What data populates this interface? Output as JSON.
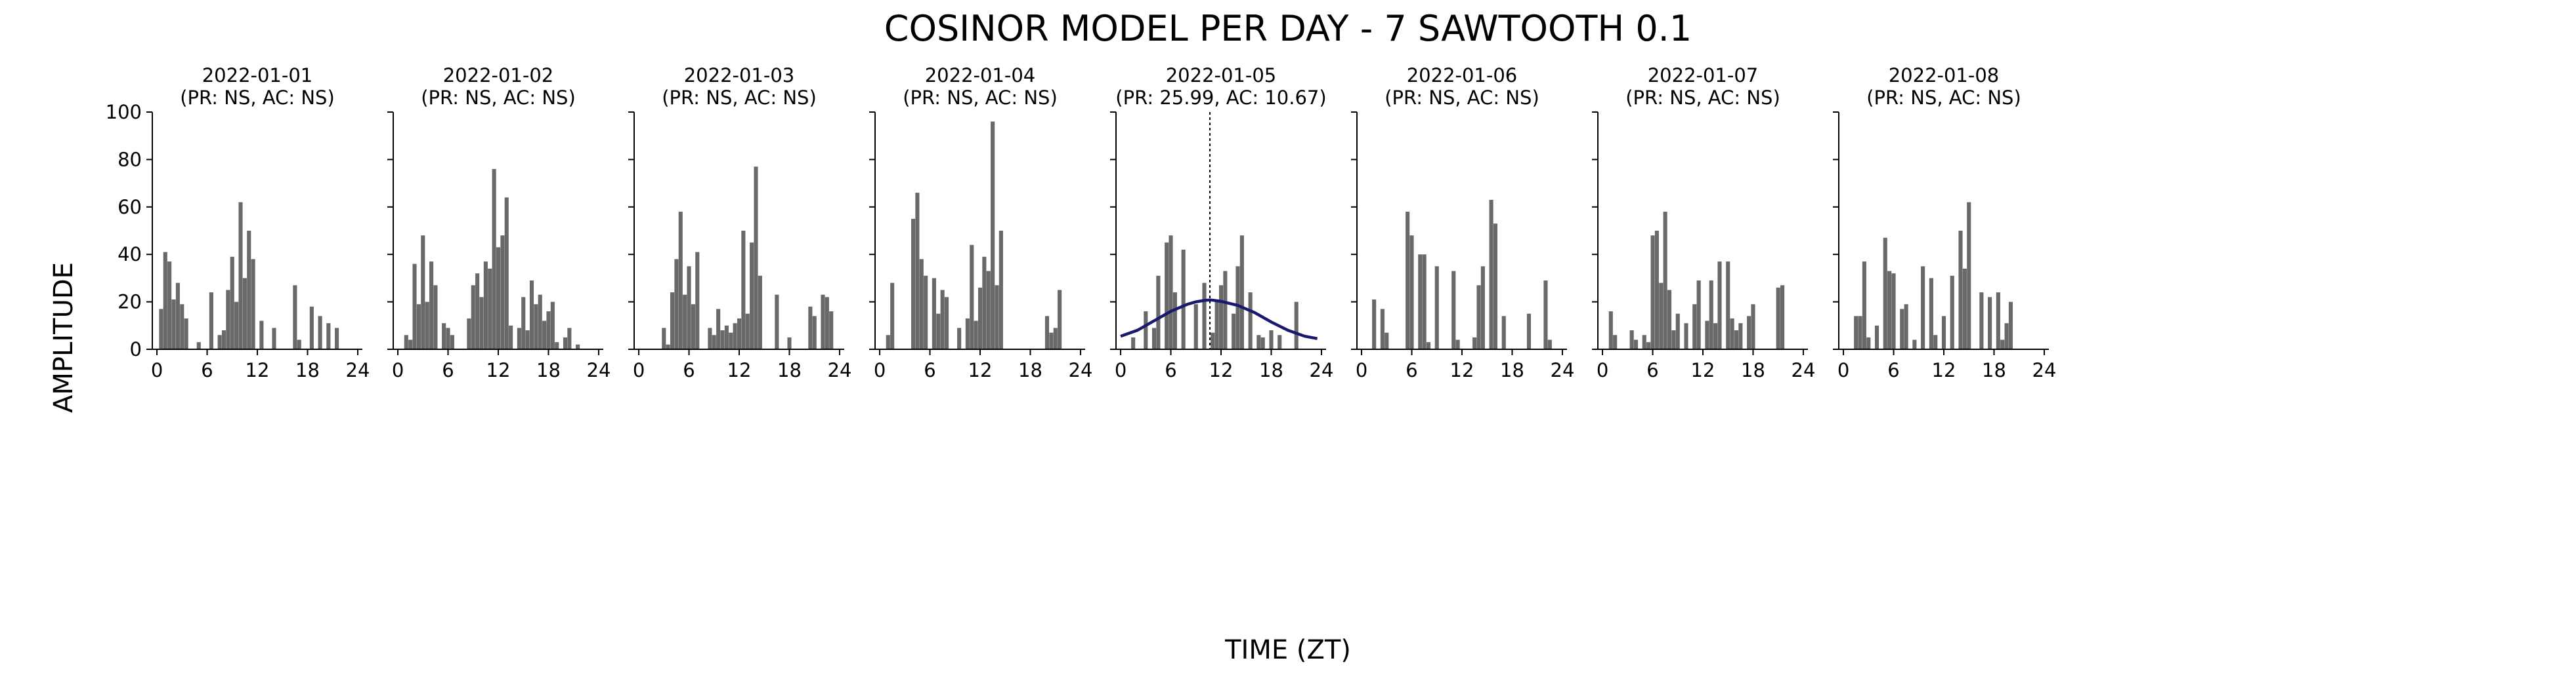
{
  "figure": {
    "title": "COSINOR MODEL PER DAY - 7 SAWTOOTH 0.1",
    "xlabel": "TIME (ZT)",
    "ylabel": "AMPLITUDE",
    "bar_color": "#696969",
    "fit_color": "#191970"
  },
  "chart_data": [
    {
      "type": "bar",
      "title": "2022-01-01",
      "subtitle": "(PR: NS, AC: NS)",
      "xlim": [
        0,
        24
      ],
      "ylim": [
        0,
        100
      ],
      "xticks": [
        "0",
        "6",
        "12",
        "18",
        "24"
      ],
      "yticks": [
        "0",
        "20",
        "40",
        "60",
        "80",
        "100"
      ],
      "x": [
        0.5,
        1,
        1.5,
        2,
        2.5,
        3,
        3.5,
        4,
        4.5,
        5,
        5.5,
        6,
        6.5,
        7,
        7.5,
        8,
        8.5,
        9,
        9.5,
        10,
        10.5,
        11,
        11.5,
        12,
        12.5,
        13,
        13.5,
        14,
        14.5,
        15,
        15.5,
        16,
        16.5,
        17,
        17.5,
        18,
        18.5,
        19,
        19.5,
        20,
        20.5,
        21,
        21.5,
        22,
        22.5,
        23,
        23.5,
        24
      ],
      "values": [
        17,
        41,
        37,
        21,
        28,
        19,
        13,
        0,
        0,
        3,
        0,
        0,
        24,
        0,
        6,
        8,
        25,
        39,
        20,
        62,
        30,
        50,
        38,
        0,
        12,
        0,
        0,
        9,
        0,
        0,
        0,
        0,
        27,
        4,
        0,
        0,
        18,
        0,
        14,
        0,
        11,
        0,
        9,
        0,
        0,
        0,
        0,
        0
      ]
    },
    {
      "type": "bar",
      "title": "2022-01-02",
      "subtitle": "(PR: NS, AC: NS)",
      "xlim": [
        0,
        24
      ],
      "ylim": [
        0,
        100
      ],
      "xticks": [
        "0",
        "6",
        "12",
        "18",
        "24"
      ],
      "yticks": [],
      "x": [
        0.5,
        1,
        1.5,
        2,
        2.5,
        3,
        3.5,
        4,
        4.5,
        5,
        5.5,
        6,
        6.5,
        7,
        7.5,
        8,
        8.5,
        9,
        9.5,
        10,
        10.5,
        11,
        11.5,
        12,
        12.5,
        13,
        13.5,
        14,
        14.5,
        15,
        15.5,
        16,
        16.5,
        17,
        17.5,
        18,
        18.5,
        19,
        19.5,
        20,
        20.5,
        21,
        21.5,
        22,
        22.5,
        23,
        23.5,
        24
      ],
      "values": [
        0,
        6,
        4,
        36,
        19,
        48,
        20,
        37,
        27,
        0,
        11,
        9,
        6,
        0,
        0,
        0,
        13,
        27,
        32,
        22,
        37,
        34,
        76,
        43,
        48,
        64,
        10,
        0,
        9,
        22,
        8,
        29,
        19,
        23,
        12,
        16,
        20,
        3,
        0,
        5,
        9,
        0,
        2,
        0,
        0,
        0,
        0,
        0
      ]
    },
    {
      "type": "bar",
      "title": "2022-01-03",
      "subtitle": "(PR: NS, AC: NS)",
      "xlim": [
        0,
        24
      ],
      "ylim": [
        0,
        100
      ],
      "xticks": [
        "0",
        "6",
        "12",
        "18",
        "24"
      ],
      "yticks": [],
      "x": [
        0.5,
        1,
        1.5,
        2,
        2.5,
        3,
        3.5,
        4,
        4.5,
        5,
        5.5,
        6,
        6.5,
        7,
        7.5,
        8,
        8.5,
        9,
        9.5,
        10,
        10.5,
        11,
        11.5,
        12,
        12.5,
        13,
        13.5,
        14,
        14.5,
        15,
        15.5,
        16,
        16.5,
        17,
        17.5,
        18,
        18.5,
        19,
        19.5,
        20,
        20.5,
        21,
        21.5,
        22,
        22.5,
        23,
        23.5,
        24
      ],
      "values": [
        0,
        0,
        0,
        0,
        0,
        9,
        2,
        24,
        38,
        58,
        23,
        35,
        19,
        41,
        0,
        0,
        9,
        6,
        17,
        8,
        10,
        7,
        11,
        13,
        50,
        15,
        45,
        77,
        31,
        0,
        0,
        0,
        23,
        0,
        0,
        5,
        0,
        0,
        0,
        0,
        18,
        14,
        0,
        23,
        22,
        16,
        0,
        0
      ]
    },
    {
      "type": "bar",
      "title": "2022-01-04",
      "subtitle": "(PR: NS, AC: NS)",
      "xlim": [
        0,
        24
      ],
      "ylim": [
        0,
        100
      ],
      "xticks": [
        "0",
        "6",
        "12",
        "18",
        "24"
      ],
      "yticks": [],
      "x": [
        0.5,
        1,
        1.5,
        2,
        2.5,
        3,
        3.5,
        4,
        4.5,
        5,
        5.5,
        6,
        6.5,
        7,
        7.5,
        8,
        8.5,
        9,
        9.5,
        10,
        10.5,
        11,
        11.5,
        12,
        12.5,
        13,
        13.5,
        14,
        14.5,
        15,
        15.5,
        16,
        16.5,
        17,
        17.5,
        18,
        18.5,
        19,
        19.5,
        20,
        20.5,
        21,
        21.5,
        22,
        22.5,
        23,
        23.5,
        24
      ],
      "values": [
        0,
        6,
        28,
        0,
        0,
        0,
        0,
        55,
        66,
        38,
        31,
        0,
        30,
        15,
        25,
        22,
        0,
        0,
        9,
        0,
        13,
        44,
        12,
        26,
        39,
        33,
        96,
        27,
        50,
        0,
        0,
        0,
        0,
        0,
        0,
        0,
        0,
        0,
        0,
        14,
        7,
        9,
        25,
        0,
        0,
        0,
        0,
        0
      ]
    },
    {
      "type": "bar",
      "title": "2022-01-05",
      "subtitle": "(PR: 25.99, AC: 10.67)",
      "xlim": [
        0,
        24
      ],
      "ylim": [
        0,
        100
      ],
      "xticks": [
        "0",
        "6",
        "12",
        "18",
        "24"
      ],
      "yticks": [],
      "acrophase": 10.67,
      "x": [
        0.5,
        1,
        1.5,
        2,
        2.5,
        3,
        3.5,
        4,
        4.5,
        5,
        5.5,
        6,
        6.5,
        7,
        7.5,
        8,
        8.5,
        9,
        9.5,
        10,
        10.5,
        11,
        11.5,
        12,
        12.5,
        13,
        13.5,
        14,
        14.5,
        15,
        15.5,
        16,
        16.5,
        17,
        17.5,
        18,
        18.5,
        19,
        19.5,
        20,
        20.5,
        21,
        21.5,
        22,
        22.5,
        23,
        23.5,
        24
      ],
      "values": [
        0,
        0,
        5,
        0,
        0,
        16,
        0,
        9,
        31,
        0,
        45,
        48,
        24,
        0,
        42,
        0,
        0,
        19,
        0,
        28,
        0,
        7,
        21,
        27,
        33,
        0,
        15,
        35,
        48,
        0,
        24,
        0,
        6,
        5,
        0,
        8,
        0,
        6,
        0,
        0,
        0,
        20,
        0,
        0,
        0,
        0,
        0,
        0
      ],
      "fit": {
        "x": [
          0,
          2,
          4,
          6,
          8,
          9,
          10,
          10.67,
          11,
          12,
          14,
          16,
          18,
          20,
          22,
          23.5
        ],
        "y": [
          5.5,
          8,
          12,
          16,
          19,
          20,
          20.6,
          20.8,
          20.7,
          20.2,
          18.5,
          15.5,
          11.5,
          8,
          5.5,
          4.5
        ]
      }
    },
    {
      "type": "bar",
      "title": "2022-01-06",
      "subtitle": "(PR: NS, AC: NS)",
      "xlim": [
        0,
        24
      ],
      "ylim": [
        0,
        100
      ],
      "xticks": [
        "0",
        "6",
        "12",
        "18",
        "24"
      ],
      "yticks": [],
      "x": [
        0.5,
        1,
        1.5,
        2,
        2.5,
        3,
        3.5,
        4,
        4.5,
        5,
        5.5,
        6,
        6.5,
        7,
        7.5,
        8,
        8.5,
        9,
        9.5,
        10,
        10.5,
        11,
        11.5,
        12,
        12.5,
        13,
        13.5,
        14,
        14.5,
        15,
        15.5,
        16,
        16.5,
        17,
        17.5,
        18,
        18.5,
        19,
        19.5,
        20,
        20.5,
        21,
        21.5,
        22,
        22.5,
        23,
        23.5,
        24
      ],
      "values": [
        0,
        0,
        21,
        0,
        17,
        7,
        0,
        0,
        0,
        0,
        58,
        48,
        0,
        40,
        40,
        3,
        0,
        35,
        0,
        0,
        0,
        33,
        4,
        0,
        0,
        0,
        5,
        27,
        35,
        0,
        63,
        53,
        0,
        14,
        0,
        0,
        0,
        0,
        0,
        15,
        0,
        0,
        0,
        29,
        4,
        0,
        0,
        0
      ]
    },
    {
      "type": "bar",
      "title": "2022-01-07",
      "subtitle": "(PR: NS, AC: NS)",
      "xlim": [
        0,
        24
      ],
      "ylim": [
        0,
        100
      ],
      "xticks": [
        "0",
        "6",
        "12",
        "18",
        "24"
      ],
      "yticks": [],
      "x": [
        0.5,
        1,
        1.5,
        2,
        2.5,
        3,
        3.5,
        4,
        4.5,
        5,
        5.5,
        6,
        6.5,
        7,
        7.5,
        8,
        8.5,
        9,
        9.5,
        10,
        10.5,
        11,
        11.5,
        12,
        12.5,
        13,
        13.5,
        14,
        14.5,
        15,
        15.5,
        16,
        16.5,
        17,
        17.5,
        18,
        18.5,
        19,
        19.5,
        20,
        20.5,
        21,
        21.5,
        22,
        22.5,
        23,
        23.5,
        24
      ],
      "values": [
        0,
        16,
        6,
        0,
        0,
        0,
        8,
        4,
        0,
        6,
        3,
        48,
        50,
        28,
        58,
        25,
        8,
        15,
        0,
        11,
        0,
        19,
        29,
        0,
        12,
        29,
        11,
        37,
        0,
        37,
        13,
        8,
        11,
        0,
        14,
        19,
        0,
        0,
        0,
        0,
        0,
        26,
        27,
        0,
        0,
        0,
        0,
        0
      ]
    },
    {
      "type": "bar",
      "title": "2022-01-08",
      "subtitle": "(PR: NS, AC: NS)",
      "xlim": [
        0,
        24
      ],
      "ylim": [
        0,
        100
      ],
      "xticks": [
        "0",
        "6",
        "12",
        "18",
        "24"
      ],
      "yticks": [],
      "x": [
        0.5,
        1,
        1.5,
        2,
        2.5,
        3,
        3.5,
        4,
        4.5,
        5,
        5.5,
        6,
        6.5,
        7,
        7.5,
        8,
        8.5,
        9,
        9.5,
        10,
        10.5,
        11,
        11.5,
        12,
        12.5,
        13,
        13.5,
        14,
        14.5,
        15,
        15.5,
        16,
        16.5,
        17,
        17.5,
        18,
        18.5,
        19,
        19.5,
        20,
        20.5,
        21,
        21.5,
        22,
        22.5,
        23,
        23.5,
        24
      ],
      "values": [
        0,
        0,
        14,
        14,
        37,
        5,
        0,
        10,
        0,
        47,
        33,
        32,
        0,
        17,
        19,
        0,
        4,
        0,
        35,
        0,
        30,
        6,
        0,
        14,
        0,
        31,
        0,
        50,
        34,
        62,
        0,
        0,
        24,
        0,
        22,
        0,
        24,
        4,
        11,
        20,
        0,
        0,
        0,
        0,
        0,
        0,
        0,
        0
      ]
    }
  ]
}
